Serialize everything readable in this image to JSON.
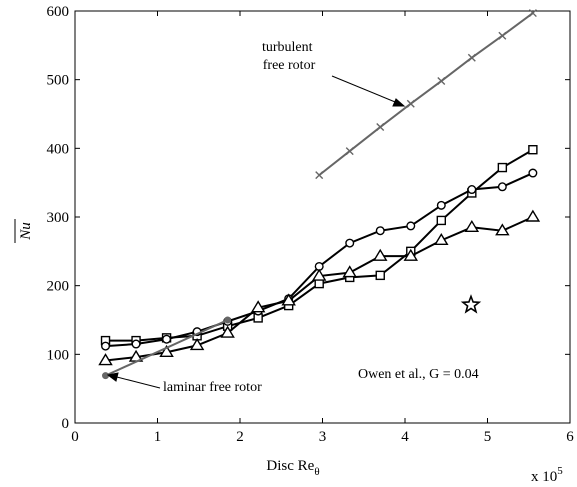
{
  "chart_data": {
    "type": "line",
    "xlabel_main": "Disc Re",
    "xlabel_sub": "θ",
    "ylabel": "Nu",
    "x_multiplier": "x 10",
    "x_multiplier_exp": "5",
    "xlim": [
      0,
      6
    ],
    "ylim": [
      0,
      600
    ],
    "xticks": [
      0,
      1,
      2,
      3,
      4,
      5,
      6
    ],
    "yticks": [
      0,
      100,
      200,
      300,
      400,
      500,
      600
    ],
    "grid": false,
    "series": [
      {
        "marker": "square",
        "color": "#000000",
        "x": [
          0.37,
          0.74,
          1.11,
          1.48,
          1.85,
          2.22,
          2.59,
          2.96,
          3.33,
          3.7,
          4.07,
          4.44,
          4.81,
          5.18,
          5.55
        ],
        "y": [
          120,
          120,
          124,
          127,
          141,
          153,
          171,
          203,
          212,
          215,
          250,
          295,
          335,
          372,
          398
        ]
      },
      {
        "marker": "circle",
        "color": "#000000",
        "x": [
          0.37,
          0.74,
          1.11,
          1.48,
          1.85,
          2.22,
          2.59,
          2.96,
          3.33,
          3.7,
          4.07,
          4.44,
          4.81,
          5.18,
          5.55
        ],
        "y": [
          112,
          115,
          122,
          133,
          148,
          163,
          181,
          228,
          262,
          280,
          287,
          317,
          340,
          344,
          364
        ]
      },
      {
        "marker": "triangle",
        "color": "#000000",
        "x": [
          0.37,
          0.74,
          1.11,
          1.48,
          1.85,
          2.22,
          2.59,
          2.96,
          3.33,
          3.7,
          4.07,
          4.44,
          4.81,
          5.18,
          5.55
        ],
        "y": [
          91,
          96,
          103,
          113,
          131,
          168,
          178,
          214,
          219,
          243,
          243,
          266,
          285,
          280,
          300
        ]
      },
      {
        "marker": "dot",
        "color": "#666666",
        "x": [
          0.37,
          1.85
        ],
        "y": [
          69,
          150
        ]
      },
      {
        "marker": "x",
        "color": "#666666",
        "x": [
          2.96,
          3.33,
          3.7,
          4.07,
          4.44,
          4.81,
          5.18,
          5.55
        ],
        "y": [
          361,
          396,
          431,
          465,
          498,
          532,
          564,
          597
        ]
      }
    ],
    "points": [
      {
        "marker": "star",
        "x": 4.8,
        "y": 172
      }
    ],
    "annotations": [
      {
        "lines": [
          "turbulent",
          "free rotor"
        ]
      },
      {
        "lines": [
          "laminar free rotor"
        ]
      },
      {
        "lines": [
          "Owen et al., G = 0.04"
        ]
      }
    ]
  }
}
